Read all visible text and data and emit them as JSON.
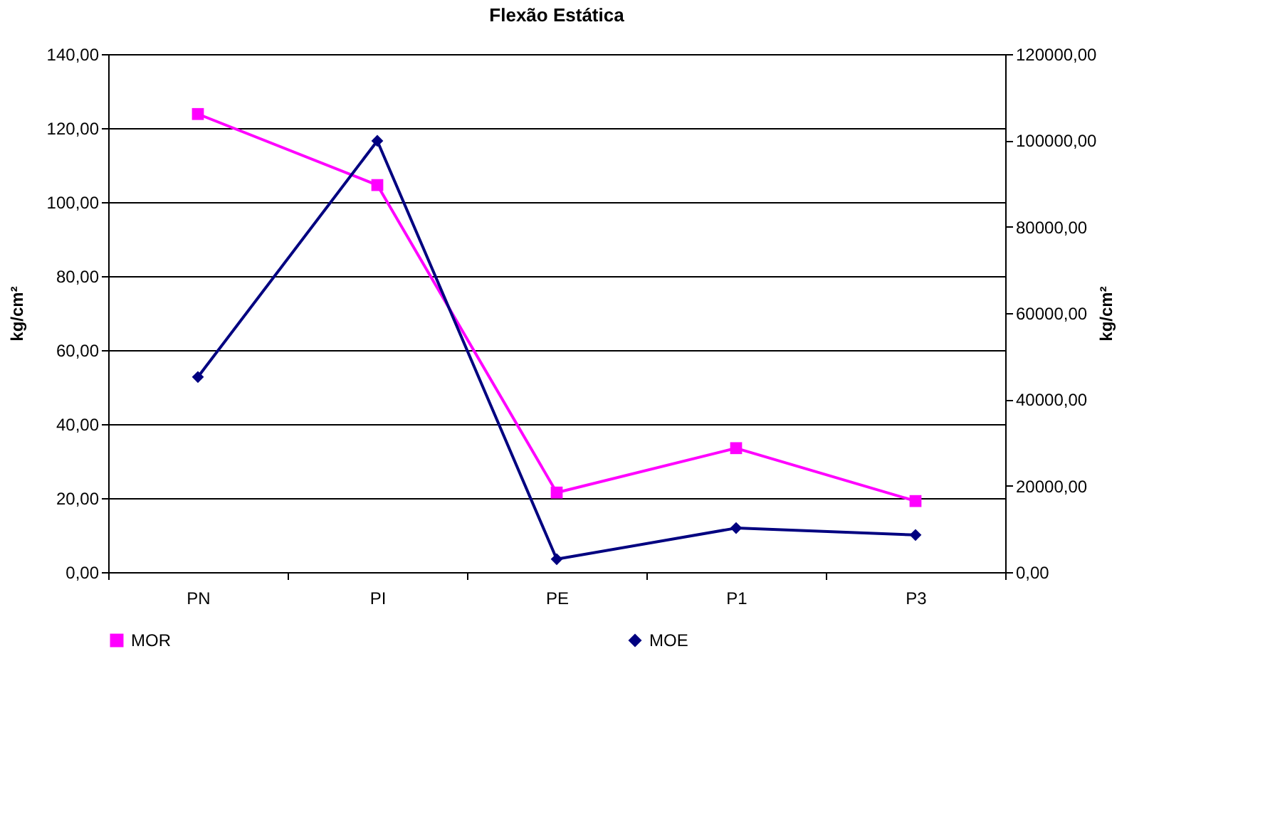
{
  "chart_data": {
    "type": "line",
    "title": "Flexão Estática",
    "ylabel": "kg/cm²",
    "y2label": "kg/cm²",
    "categories": [
      "PN",
      "PI",
      "PE",
      "P1",
      "P3"
    ],
    "series": [
      {
        "name": "MOR",
        "color": "#ff00ff",
        "marker": "square",
        "values": [
          123.8,
          104.6,
          21.5,
          33.5,
          19.2
        ]
      },
      {
        "name": "MOE",
        "color": "#000080",
        "marker": "diamond",
        "axis": "y2",
        "values": [
          45200,
          99900,
          3000,
          10200,
          8600
        ]
      }
    ],
    "ylim": [
      0,
      140
    ],
    "yticks": [
      {
        "value": 0,
        "label": "0,00"
      },
      {
        "value": 20,
        "label": "20,00"
      },
      {
        "value": 40,
        "label": "40,00"
      },
      {
        "value": 60,
        "label": "60,00"
      },
      {
        "value": 80,
        "label": "80,00"
      },
      {
        "value": 100,
        "label": "100,00"
      },
      {
        "value": 120,
        "label": "120,00"
      },
      {
        "value": 140,
        "label": "140,00"
      }
    ],
    "y2lim": [
      0,
      120000
    ],
    "y2ticks": [
      {
        "value": 0,
        "label": "0,00"
      },
      {
        "value": 20000,
        "label": "20000,00"
      },
      {
        "value": 40000,
        "label": "40000,00"
      },
      {
        "value": 60000,
        "label": "60000,00"
      },
      {
        "value": 80000,
        "label": "80000,00"
      },
      {
        "value": 100000,
        "label": "100000,00"
      },
      {
        "value": 120000,
        "label": "120000,00"
      }
    ],
    "grid": "y",
    "legend": "bottom"
  }
}
